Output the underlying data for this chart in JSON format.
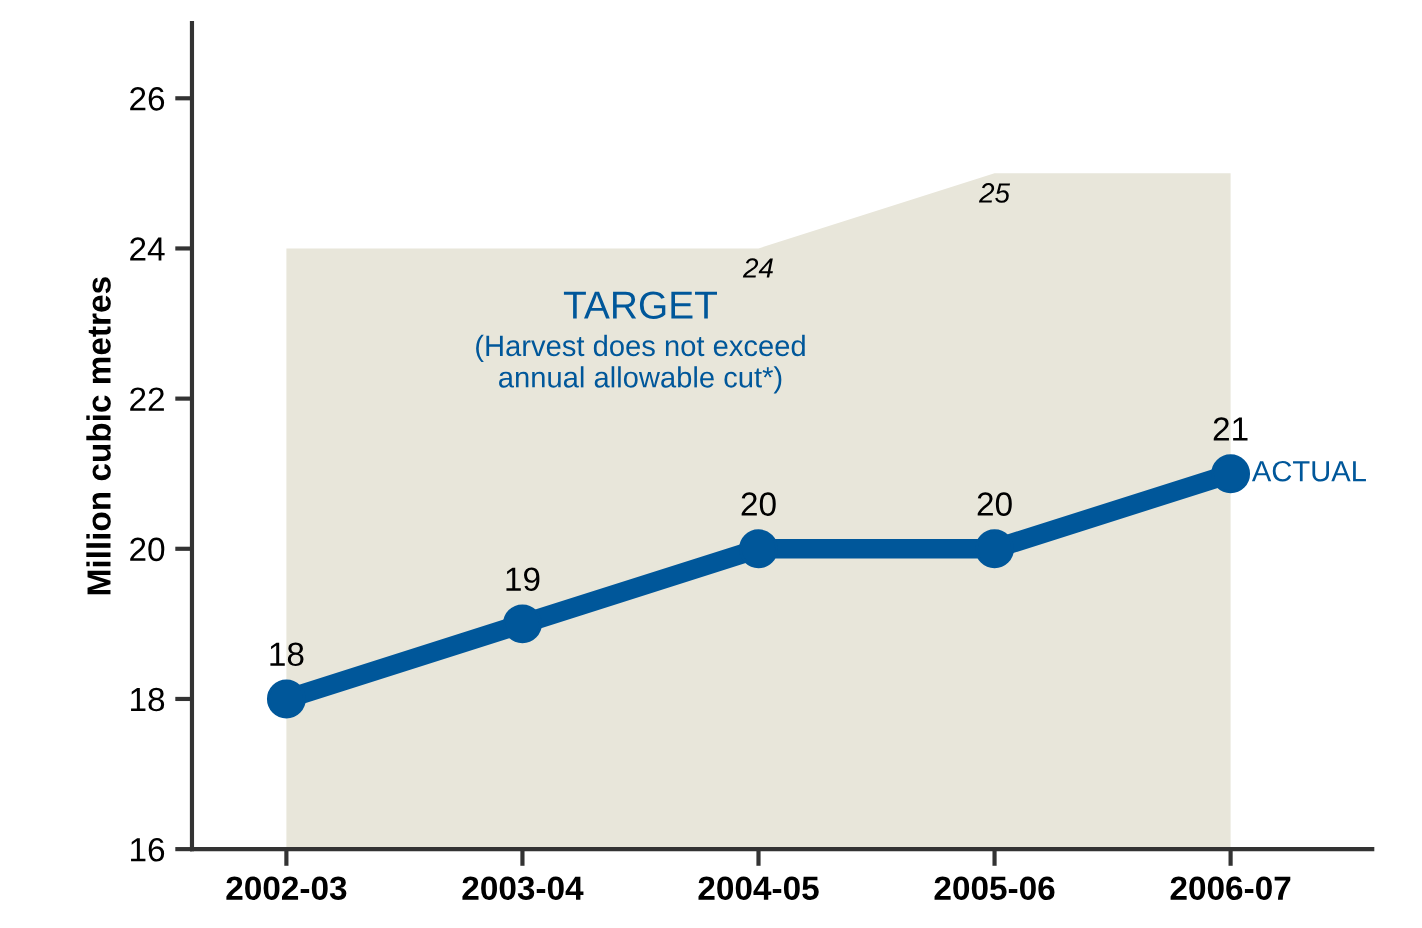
{
  "chart_data": {
    "type": "line",
    "ylabel": "Million cubic metres",
    "categories": [
      "2002-03",
      "2003-04",
      "2004-05",
      "2005-06",
      "2006-07"
    ],
    "series": [
      {
        "name": "TARGET",
        "type": "area",
        "color": "#e8e6da",
        "values": [
          24,
          24,
          24,
          25,
          25
        ],
        "value_labels": [
          null,
          null,
          "24",
          "25",
          null
        ]
      },
      {
        "name": "ACTUAL",
        "color": "#00579a",
        "values": [
          18,
          19,
          20,
          20,
          21
        ],
        "value_labels": [
          "18",
          "19",
          "20",
          "20",
          "21"
        ],
        "marker": "circle"
      }
    ],
    "annotations": [
      "(Harvest does not exceed\nannual allowable cut*)"
    ],
    "ylim": [
      16,
      27
    ],
    "yticks": [
      16,
      18,
      20,
      22,
      24,
      26
    ],
    "grid": false,
    "legend": false
  }
}
